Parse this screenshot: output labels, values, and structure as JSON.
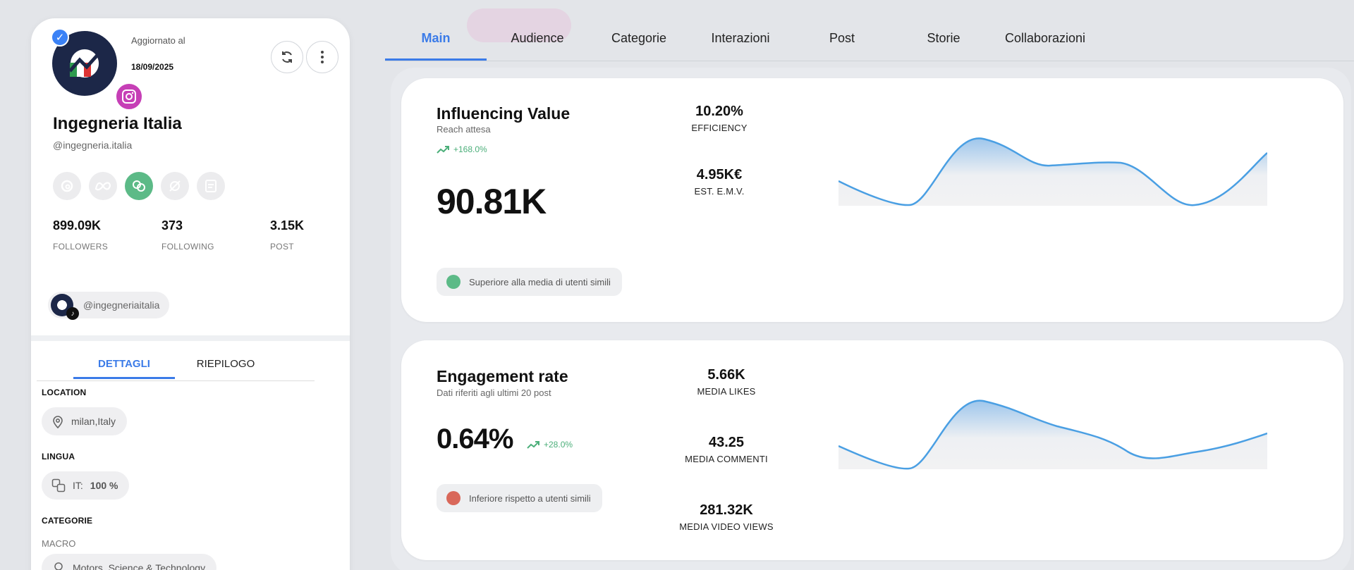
{
  "profile": {
    "updated_label": "Aggiornato al",
    "updated_date": "18/09/2025",
    "name": "Ingegneria Italia",
    "handle": "@ingegneria.italia",
    "stats": [
      {
        "value": "899.09K",
        "label": "FOLLOWERS"
      },
      {
        "value": "373",
        "label": "FOLLOWING"
      },
      {
        "value": "3.15K",
        "label": "POST"
      }
    ],
    "tiktok_handle": "@ingegneriaitalia",
    "tabs": [
      "DETTAGLI",
      "RIEPILOGO"
    ],
    "location_title": "LOCATION",
    "location_value": "milan,Italy",
    "language_title": "LINGUA",
    "language_code": "IT:",
    "language_pct": "100 %",
    "categories_title": "CATEGORIE",
    "macro_label": "MACRO",
    "macro_value": "Motors, Science & Technology"
  },
  "main_tabs": [
    "Main",
    "Audience",
    "Categorie",
    "Interazioni",
    "Post",
    "Storie",
    "Collaborazioni"
  ],
  "influencing": {
    "title": "Influencing Value",
    "subtitle": "Reach attesa",
    "trend": "+168.0%",
    "value": "90.81K",
    "efficiency_value": "10.20%",
    "efficiency_label": "EFFICIENCY",
    "emv_value": "4.95K€",
    "emv_label": "EST. E.M.V.",
    "compare_text": "Superiore alla media di utenti simili",
    "compare_color": "#5cba87"
  },
  "engagement": {
    "title": "Engagement rate",
    "subtitle": "Dati riferiti agli ultimi 20 post",
    "value": "0.64%",
    "trend": "+28.0%",
    "likes_value": "5.66K",
    "likes_label": "MEDIA LIKES",
    "comments_value": "43.25",
    "comments_label": "MEDIA COMMENTI",
    "views_value": "281.32K",
    "views_label": "MEDIA VIDEO VIEWS",
    "compare_text": "Inferiore rispetto a utenti simili",
    "compare_color": "#d9685a"
  },
  "colors": {
    "accent": "#3b7be8",
    "positive": "#4caf7a",
    "line": "#4a9fe3"
  }
}
